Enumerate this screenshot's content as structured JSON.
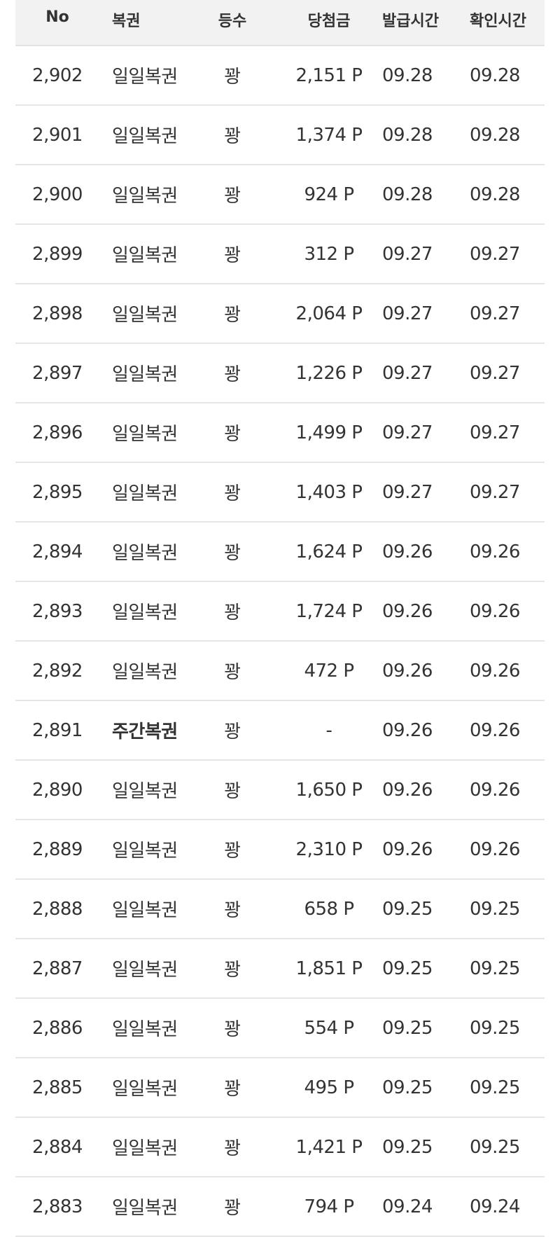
{
  "table": {
    "headers": {
      "no": "No",
      "type": "복권",
      "rank": "등수",
      "amount": "당첨금",
      "issued": "발급시간",
      "checked": "확인시간"
    },
    "rows": [
      {
        "no": "2,902",
        "type": "일일복권",
        "rank": "꽝",
        "amount": "2,151 P",
        "issued": "09.28",
        "checked": "09.28",
        "bold": false
      },
      {
        "no": "2,901",
        "type": "일일복권",
        "rank": "꽝",
        "amount": "1,374 P",
        "issued": "09.28",
        "checked": "09.28",
        "bold": false
      },
      {
        "no": "2,900",
        "type": "일일복권",
        "rank": "꽝",
        "amount": "924 P",
        "issued": "09.28",
        "checked": "09.28",
        "bold": false
      },
      {
        "no": "2,899",
        "type": "일일복권",
        "rank": "꽝",
        "amount": "312 P",
        "issued": "09.27",
        "checked": "09.27",
        "bold": false
      },
      {
        "no": "2,898",
        "type": "일일복권",
        "rank": "꽝",
        "amount": "2,064 P",
        "issued": "09.27",
        "checked": "09.27",
        "bold": false
      },
      {
        "no": "2,897",
        "type": "일일복권",
        "rank": "꽝",
        "amount": "1,226 P",
        "issued": "09.27",
        "checked": "09.27",
        "bold": false
      },
      {
        "no": "2,896",
        "type": "일일복권",
        "rank": "꽝",
        "amount": "1,499 P",
        "issued": "09.27",
        "checked": "09.27",
        "bold": false
      },
      {
        "no": "2,895",
        "type": "일일복권",
        "rank": "꽝",
        "amount": "1,403 P",
        "issued": "09.27",
        "checked": "09.27",
        "bold": false
      },
      {
        "no": "2,894",
        "type": "일일복권",
        "rank": "꽝",
        "amount": "1,624 P",
        "issued": "09.26",
        "checked": "09.26",
        "bold": false
      },
      {
        "no": "2,893",
        "type": "일일복권",
        "rank": "꽝",
        "amount": "1,724 P",
        "issued": "09.26",
        "checked": "09.26",
        "bold": false
      },
      {
        "no": "2,892",
        "type": "일일복권",
        "rank": "꽝",
        "amount": "472 P",
        "issued": "09.26",
        "checked": "09.26",
        "bold": false
      },
      {
        "no": "2,891",
        "type": "주간복권",
        "rank": "꽝",
        "amount": "-",
        "issued": "09.26",
        "checked": "09.26",
        "bold": true
      },
      {
        "no": "2,890",
        "type": "일일복권",
        "rank": "꽝",
        "amount": "1,650 P",
        "issued": "09.26",
        "checked": "09.26",
        "bold": false
      },
      {
        "no": "2,889",
        "type": "일일복권",
        "rank": "꽝",
        "amount": "2,310 P",
        "issued": "09.26",
        "checked": "09.26",
        "bold": false
      },
      {
        "no": "2,888",
        "type": "일일복권",
        "rank": "꽝",
        "amount": "658 P",
        "issued": "09.25",
        "checked": "09.25",
        "bold": false
      },
      {
        "no": "2,887",
        "type": "일일복권",
        "rank": "꽝",
        "amount": "1,851 P",
        "issued": "09.25",
        "checked": "09.25",
        "bold": false
      },
      {
        "no": "2,886",
        "type": "일일복권",
        "rank": "꽝",
        "amount": "554 P",
        "issued": "09.25",
        "checked": "09.25",
        "bold": false
      },
      {
        "no": "2,885",
        "type": "일일복권",
        "rank": "꽝",
        "amount": "495 P",
        "issued": "09.25",
        "checked": "09.25",
        "bold": false
      },
      {
        "no": "2,884",
        "type": "일일복권",
        "rank": "꽝",
        "amount": "1,421 P",
        "issued": "09.25",
        "checked": "09.25",
        "bold": false
      },
      {
        "no": "2,883",
        "type": "일일복권",
        "rank": "꽝",
        "amount": "794 P",
        "issued": "09.24",
        "checked": "09.24",
        "bold": false
      }
    ]
  }
}
